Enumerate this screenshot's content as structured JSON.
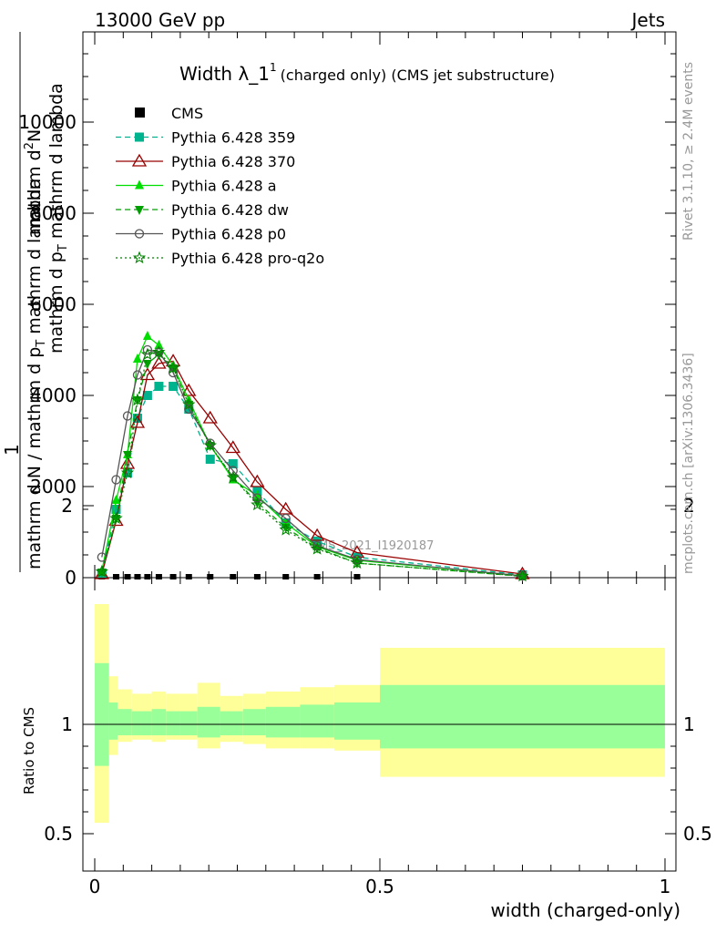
{
  "header": {
    "left": "13000 GeV pp",
    "right": "Jets"
  },
  "title": {
    "main": "Width λ_1",
    "sup": "1",
    "sub": "(charged only) (CMS jet substructure)"
  },
  "side_labels": {
    "rivet": "Rivet 3.1.10, ≥ 2.4M events",
    "mcplots": "mcplots.cern.ch [arXiv:1306.3436]"
  },
  "watermark": "CMS_2021_I1920187",
  "axes": {
    "y_main_label_parts": [
      "1",
      "mathrm d N / mathrm d p",
      "T",
      " mathrm d lambda",
      "mathrm d",
      "2",
      "N",
      "mathrm d p",
      "T",
      " mathrm d lambda"
    ],
    "y_ratio_label": "Ratio to CMS",
    "x_label": "width (charged-only)"
  },
  "colors": {
    "cms": "#000000",
    "p359": "#00b38f",
    "p370": "#990000",
    "pa": "#00dd00",
    "pdw": "#00a000",
    "pp0": "#555555",
    "pq2o": "#008000",
    "band_inner": "#99ff99",
    "band_outer": "#ffff99"
  },
  "chart_data": {
    "type": "line",
    "xlim": [
      -0.02,
      1.02
    ],
    "ylim_main": [
      0,
      12000
    ],
    "ylim_ratio": [
      0.4,
      2.3
    ],
    "x_ticks": [
      0,
      0.5,
      1
    ],
    "x_tick_labels": [
      "0",
      "0.5",
      "1"
    ],
    "y_ticks_main": [
      0,
      2000,
      4000,
      6000,
      8000,
      10000
    ],
    "y_tick_labels_main": [
      "0",
      "2000",
      "4000",
      "6000",
      "8000",
      "10000"
    ],
    "y_ticks_ratio": [
      0.5,
      1,
      2
    ],
    "y_tick_labels_ratio": [
      "0.5",
      "1",
      "2"
    ],
    "x": [
      0.0125,
      0.0375,
      0.0575,
      0.075,
      0.0925,
      0.1125,
      0.1375,
      0.165,
      0.2025,
      0.2425,
      0.285,
      0.335,
      0.39,
      0.46,
      0.75
    ],
    "series": [
      {
        "name": "CMS",
        "key": "cms",
        "style": "cms",
        "values": [
          0,
          0,
          0,
          0,
          0,
          0,
          0,
          0,
          0,
          0,
          0,
          0,
          0,
          0,
          0
        ]
      },
      {
        "name": "Pythia 6.428 359",
        "key": "p359",
        "style": "dash",
        "marker": "square",
        "values": [
          100,
          1500,
          2300,
          3500,
          4000,
          4200,
          4200,
          3700,
          2600,
          2500,
          1900,
          1200,
          800,
          450,
          60
        ]
      },
      {
        "name": "Pythia 6.428 370",
        "key": "p370",
        "style": "solid",
        "marker": "triangle-open",
        "values": [
          80,
          1250,
          2500,
          3400,
          4450,
          4700,
          4750,
          4100,
          3500,
          2850,
          2100,
          1500,
          920,
          550,
          80
        ]
      },
      {
        "name": "Pythia 6.428 a",
        "key": "pa",
        "style": "solid",
        "marker": "triangle",
        "values": [
          150,
          1700,
          2700,
          4800,
          5300,
          5100,
          4650,
          3900,
          2900,
          2150,
          1800,
          1200,
          680,
          380,
          40
        ]
      },
      {
        "name": "Pythia 6.428 dw",
        "key": "pdw",
        "style": "dash",
        "marker": "triangle-down",
        "values": [
          120,
          1300,
          2700,
          3900,
          4700,
          4900,
          4600,
          3800,
          2900,
          2200,
          1650,
          1100,
          650,
          320,
          30
        ]
      },
      {
        "name": "Pythia 6.428 p0",
        "key": "pp0",
        "style": "solid",
        "marker": "circle-open",
        "values": [
          450,
          2150,
          3550,
          4450,
          5000,
          4950,
          4500,
          3700,
          2950,
          2350,
          1750,
          1300,
          700,
          400,
          40
        ]
      },
      {
        "name": "Pythia 6.428 pro-q2o",
        "key": "pq2o",
        "style": "dot",
        "marker": "star",
        "values": [
          130,
          1300,
          2300,
          3900,
          4900,
          4950,
          4600,
          3800,
          2900,
          2200,
          1600,
          1050,
          630,
          320,
          35
        ]
      }
    ],
    "ratio_bands": {
      "edges": [
        0,
        0.025,
        0.04,
        0.065,
        0.1,
        0.125,
        0.15,
        0.18,
        0.22,
        0.26,
        0.3,
        0.36,
        0.42,
        0.5,
        1.0
      ],
      "outer_upper": [
        1.55,
        1.22,
        1.16,
        1.14,
        1.15,
        1.14,
        1.14,
        1.19,
        1.13,
        1.14,
        1.15,
        1.17,
        1.18,
        1.35
      ],
      "outer_lower": [
        0.55,
        0.86,
        0.92,
        0.93,
        0.92,
        0.93,
        0.93,
        0.89,
        0.92,
        0.91,
        0.89,
        0.89,
        0.88,
        0.76
      ],
      "inner_upper": [
        1.28,
        1.1,
        1.07,
        1.06,
        1.07,
        1.06,
        1.06,
        1.08,
        1.06,
        1.07,
        1.08,
        1.09,
        1.1,
        1.18
      ],
      "inner_lower": [
        0.81,
        0.93,
        0.95,
        0.95,
        0.95,
        0.95,
        0.95,
        0.94,
        0.95,
        0.95,
        0.94,
        0.94,
        0.93,
        0.89
      ]
    }
  }
}
